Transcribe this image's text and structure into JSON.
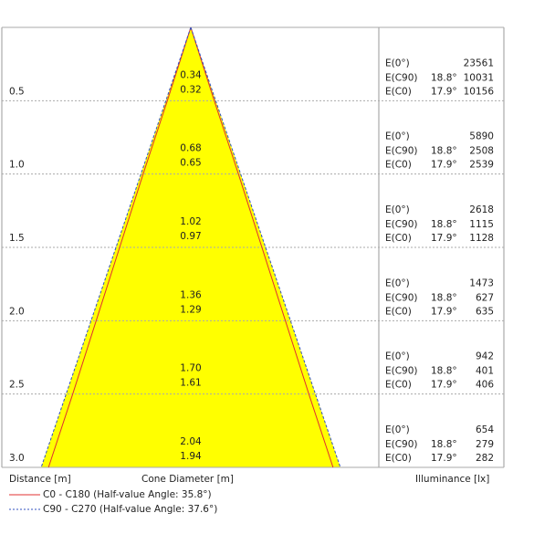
{
  "chart_data": {
    "type": "cone",
    "axis_labels": {
      "distance": "Distance [m]",
      "diameter": "Cone Diameter [m]",
      "illuminance": "Illuminance [lx]"
    },
    "distances": [
      0.5,
      {
        "value": 1,
        "label": "1.0"
      },
      1.5,
      {
        "value": 2,
        "label": "2.0"
      },
      2.5,
      {
        "value": 3,
        "label": "3.0"
      }
    ],
    "ylim": [
      0,
      3
    ],
    "fill": "#ffff00",
    "center": {
      "label": "E(0°)",
      "illuminance": [
        23561,
        5890,
        2618,
        1473,
        942,
        654
      ]
    },
    "series": [
      {
        "name": "C0 - C180 (Half-value Angle: 35.8°)",
        "color": "#e03030",
        "dashed": false,
        "values": [
          0.32,
          0.65,
          0.97,
          1.29,
          1.61,
          1.94
        ],
        "angle": "17.9°",
        "illuminance_label": "E(C0)",
        "illuminance": [
          10156,
          2539,
          1128,
          635,
          406,
          282
        ]
      },
      {
        "name": "C90 - C270 (Half-value Angle: 37.6°)",
        "color": "#3050c0",
        "dashed": true,
        "values": [
          0.34,
          0.68,
          1.02,
          1.36,
          1.7,
          2.04
        ],
        "value_labels": [
          "0.34",
          "0.68",
          "1.02",
          "1.36",
          "1.70",
          "2.04"
        ],
        "angle": "18.8°",
        "illuminance_label": "E(C90)",
        "illuminance": [
          10031,
          2508,
          1115,
          627,
          401,
          279
        ]
      }
    ]
  }
}
